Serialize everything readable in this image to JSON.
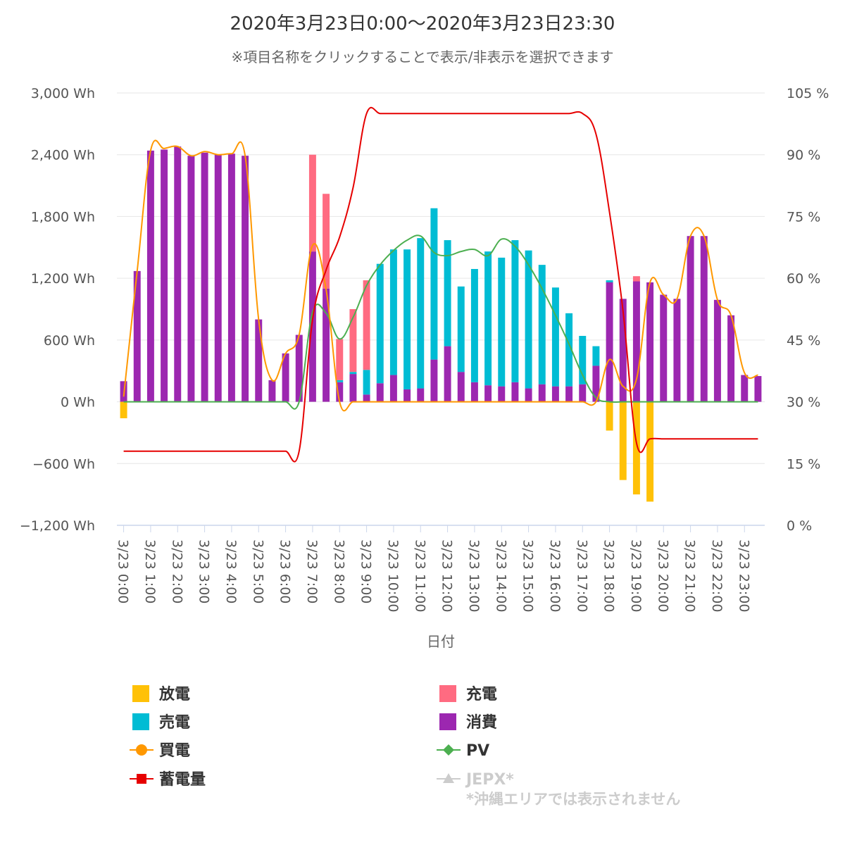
{
  "title": "2020年3月23日0:00～2020年3月23日23:30",
  "subtitle": "※項目名称をクリックすることで表示/非表示を選択できます",
  "x_axis_title": "日付",
  "legend": [
    {
      "key": "discharge",
      "label": "放電",
      "color": "#ffc107",
      "symbol": "square",
      "visible": true
    },
    {
      "key": "charge",
      "label": "充電",
      "color": "#ff6b81",
      "symbol": "square",
      "visible": true
    },
    {
      "key": "sell",
      "label": "売電",
      "color": "#00bcd4",
      "symbol": "square",
      "visible": true
    },
    {
      "key": "consumption",
      "label": "消費",
      "color": "#9c27b0",
      "symbol": "square",
      "visible": true
    },
    {
      "key": "buy",
      "label": "買電",
      "color": "#ff9800",
      "symbol": "line-circle",
      "visible": true
    },
    {
      "key": "pv",
      "label": "PV",
      "color": "#4caf50",
      "symbol": "line-diamond",
      "visible": true
    },
    {
      "key": "soc",
      "label": "蓄電量",
      "color": "#e60000",
      "symbol": "line-square",
      "visible": true
    },
    {
      "key": "jepx",
      "label": "JEPX*",
      "color": "#cccccc",
      "symbol": "line-triangle",
      "visible": false,
      "note": "*沖縄エリアでは表示されません"
    }
  ],
  "chart_data": {
    "type": "bar",
    "title": "2020年3月23日0:00～2020年3月23日23:30",
    "xlabel": "日付",
    "x": [
      "3/23 0:00",
      "3/23 0:30",
      "3/23 1:00",
      "3/23 1:30",
      "3/23 2:00",
      "3/23 2:30",
      "3/23 3:00",
      "3/23 3:30",
      "3/23 4:00",
      "3/23 4:30",
      "3/23 5:00",
      "3/23 5:30",
      "3/23 6:00",
      "3/23 6:30",
      "3/23 7:00",
      "3/23 7:30",
      "3/23 8:00",
      "3/23 8:30",
      "3/23 9:00",
      "3/23 9:30",
      "3/23 10:00",
      "3/23 10:30",
      "3/23 11:00",
      "3/23 11:30",
      "3/23 12:00",
      "3/23 12:30",
      "3/23 13:00",
      "3/23 13:30",
      "3/23 14:00",
      "3/23 14:30",
      "3/23 15:00",
      "3/23 15:30",
      "3/23 16:00",
      "3/23 16:30",
      "3/23 17:00",
      "3/23 17:30",
      "3/23 18:00",
      "3/23 18:30",
      "3/23 19:00",
      "3/23 19:30",
      "3/23 20:00",
      "3/23 20:30",
      "3/23 21:00",
      "3/23 21:30",
      "3/23 22:00",
      "3/23 22:30",
      "3/23 23:00",
      "3/23 23:30"
    ],
    "x_tick_labels": [
      "3/23 0:00",
      "3/23 1:00",
      "3/23 2:00",
      "3/23 3:00",
      "3/23 4:00",
      "3/23 5:00",
      "3/23 6:00",
      "3/23 7:00",
      "3/23 8:00",
      "3/23 9:00",
      "3/23 10:00",
      "3/23 11:00",
      "3/23 12:00",
      "3/23 13:00",
      "3/23 14:00",
      "3/23 15:00",
      "3/23 16:00",
      "3/23 17:00",
      "3/23 18:00",
      "3/23 19:00",
      "3/23 20:00",
      "3/23 21:00",
      "3/23 22:00",
      "3/23 23:00"
    ],
    "y_left": {
      "ylim": [
        -1200,
        3000
      ],
      "ticks": [
        -1200,
        -600,
        0,
        600,
        1200,
        1800,
        2400,
        3000
      ],
      "tick_labels": [
        "−1,200 Wh",
        "−600 Wh",
        "0 Wh",
        "600 Wh",
        "1,200 Wh",
        "1,800 Wh",
        "2,400 Wh",
        "3,000 Wh"
      ]
    },
    "y_right": {
      "ylim": [
        0,
        105
      ],
      "ticks": [
        0,
        15,
        30,
        45,
        60,
        75,
        90,
        105
      ],
      "tick_labels": [
        "0 %",
        "15 %",
        "30 %",
        "45 %",
        "60 %",
        "75 %",
        "90 %",
        "105 %"
      ]
    },
    "grid": true,
    "legend_position": "bottom",
    "series": [
      {
        "key": "discharge",
        "name": "放電",
        "type": "bar",
        "axis": "left",
        "values": [
          -160,
          0,
          0,
          0,
          0,
          0,
          0,
          0,
          0,
          0,
          0,
          0,
          0,
          0,
          0,
          0,
          0,
          0,
          0,
          0,
          0,
          0,
          0,
          0,
          0,
          0,
          0,
          0,
          0,
          0,
          0,
          0,
          0,
          0,
          0,
          0,
          -280,
          -760,
          -900,
          -970,
          0,
          0,
          0,
          0,
          0,
          0,
          0,
          0
        ]
      },
      {
        "key": "consumption",
        "name": "消費",
        "type": "bar",
        "axis": "left",
        "values": [
          200,
          1270,
          2440,
          2450,
          2480,
          2390,
          2420,
          2400,
          2410,
          2390,
          800,
          210,
          470,
          650,
          1460,
          1100,
          190,
          270,
          70,
          180,
          260,
          120,
          130,
          410,
          540,
          290,
          190,
          160,
          150,
          190,
          130,
          170,
          150,
          150,
          170,
          350,
          1160,
          1000,
          1170,
          1160,
          1040,
          1000,
          1610,
          1610,
          990,
          840,
          260,
          250
        ]
      },
      {
        "key": "sell",
        "name": "売電",
        "type": "bar",
        "axis": "left",
        "values": [
          0,
          0,
          0,
          0,
          0,
          0,
          0,
          0,
          0,
          0,
          0,
          0,
          0,
          0,
          0,
          0,
          20,
          20,
          240,
          1160,
          1220,
          1360,
          1460,
          1470,
          1030,
          830,
          1100,
          1300,
          1250,
          1380,
          1340,
          1160,
          960,
          710,
          470,
          190,
          20,
          0,
          0,
          0,
          0,
          0,
          0,
          0,
          0,
          0,
          0,
          0
        ]
      },
      {
        "key": "charge",
        "name": "充電",
        "type": "bar",
        "axis": "left",
        "values": [
          0,
          0,
          0,
          0,
          0,
          0,
          0,
          0,
          0,
          0,
          0,
          0,
          0,
          0,
          940,
          920,
          400,
          610,
          870,
          0,
          0,
          0,
          0,
          0,
          0,
          0,
          0,
          0,
          0,
          0,
          0,
          0,
          0,
          0,
          0,
          0,
          0,
          0,
          50,
          0,
          0,
          0,
          0,
          0,
          0,
          0,
          0,
          0
        ]
      },
      {
        "key": "buy",
        "name": "買電",
        "type": "line",
        "axis": "left",
        "values": [
          50,
          1270,
          2440,
          2460,
          2480,
          2390,
          2430,
          2400,
          2410,
          2390,
          800,
          210,
          470,
          650,
          1520,
          1090,
          0,
          0,
          0,
          0,
          0,
          0,
          0,
          0,
          0,
          0,
          0,
          0,
          0,
          0,
          0,
          0,
          0,
          0,
          0,
          0,
          410,
          150,
          220,
          1160,
          1040,
          1000,
          1610,
          1610,
          990,
          840,
          280,
          260
        ]
      },
      {
        "key": "pv",
        "name": "PV",
        "type": "line",
        "axis": "left",
        "values": [
          0,
          0,
          0,
          0,
          0,
          0,
          0,
          0,
          0,
          0,
          0,
          0,
          0,
          0,
          870,
          860,
          610,
          820,
          1130,
          1330,
          1470,
          1570,
          1610,
          1450,
          1420,
          1460,
          1480,
          1420,
          1580,
          1510,
          1330,
          1100,
          840,
          560,
          260,
          40,
          0,
          0,
          0,
          0,
          0,
          0,
          0,
          0,
          0,
          0,
          0,
          0
        ]
      },
      {
        "key": "soc",
        "name": "蓄電量",
        "type": "line",
        "axis": "right",
        "values": [
          18,
          18,
          18,
          18,
          18,
          18,
          18,
          18,
          18,
          18,
          18,
          18,
          18,
          18,
          50,
          62,
          70,
          82,
          100,
          100,
          100,
          100,
          100,
          100,
          100,
          100,
          100,
          100,
          100,
          100,
          100,
          100,
          100,
          100,
          100,
          95,
          76,
          52,
          20,
          21,
          21,
          21,
          21,
          21,
          21,
          21,
          21,
          21
        ]
      }
    ]
  }
}
